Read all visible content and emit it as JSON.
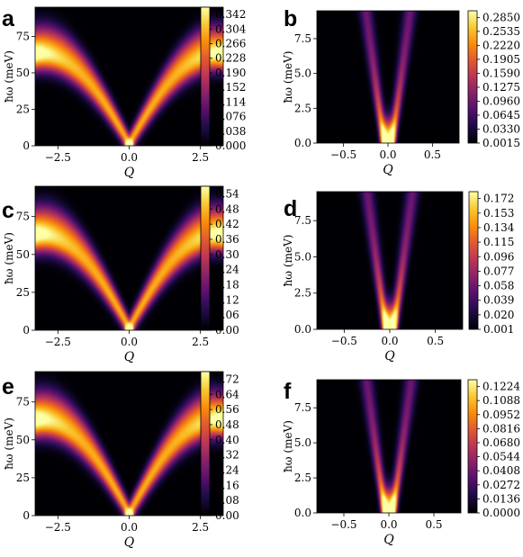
{
  "chart_data": [
    {
      "panel": "a",
      "type": "heatmap",
      "xlabel": "Q",
      "ylabel": "ħω (meV)",
      "xlim": [
        -3.3,
        3.3
      ],
      "ylim": [
        0,
        95
      ],
      "xticks": [
        -2.5,
        0.0,
        2.5
      ],
      "xticklabels": [
        "−2.5",
        "0.0",
        "2.5"
      ],
      "yticks": [
        0,
        25,
        50,
        75
      ],
      "yticklabels": [
        "0",
        "25",
        "50",
        "75"
      ],
      "colorbar": {
        "range": [
          0.0,
          0.361
        ],
        "ticks": [
          "0.342",
          "0.304",
          "0.266",
          "0.228",
          "0.190",
          "0.152",
          "0.114",
          "0.076",
          "0.038",
          "0.000"
        ],
        "values": [
          0.342,
          0.304,
          0.266,
          0.228,
          0.19,
          0.152,
          0.114,
          0.076,
          0.038,
          0.0
        ]
      },
      "model": "wide-dispersion"
    },
    {
      "panel": "b",
      "type": "heatmap",
      "xlabel": "Q",
      "ylabel": "ħω (meV)",
      "xlim": [
        -0.8,
        0.8
      ],
      "ylim": [
        0,
        9.5
      ],
      "xticks": [
        -0.5,
        0.0,
        0.5
      ],
      "xticklabels": [
        "−0.5",
        "0.0",
        "0.5"
      ],
      "yticks": [
        0,
        2.5,
        5.0,
        7.5
      ],
      "yticklabels": [
        "0.0",
        "2.5",
        "5.0",
        "7.5"
      ],
      "colorbar": {
        "range": [
          0.0015,
          0.3
        ],
        "ticks": [
          "0.2850",
          "0.2535",
          "0.2220",
          "0.1905",
          "0.1590",
          "0.1275",
          "0.0960",
          "0.0645",
          "0.0330",
          "0.0015"
        ],
        "values": [
          0.285,
          0.2535,
          0.222,
          0.1905,
          0.159,
          0.1275,
          0.096,
          0.0645,
          0.033,
          0.0015
        ]
      },
      "model": "zoom"
    },
    {
      "panel": "c",
      "type": "heatmap",
      "xlabel": "Q",
      "ylabel": "ħω (meV)",
      "xlim": [
        -3.3,
        3.3
      ],
      "ylim": [
        0,
        95
      ],
      "xticks": [
        -2.5,
        0.0,
        2.5
      ],
      "xticklabels": [
        "−2.5",
        "0.0",
        "2.5"
      ],
      "yticks": [
        0,
        25,
        50,
        75
      ],
      "yticklabels": [
        "0",
        "25",
        "50",
        "75"
      ],
      "colorbar": {
        "range": [
          0.0,
          0.57
        ],
        "ticks": [
          "0.54",
          "0.48",
          "0.42",
          "0.36",
          "0.30",
          "0.24",
          "0.18",
          "0.12",
          "0.06",
          "0.00"
        ],
        "values": [
          0.54,
          0.48,
          0.42,
          0.36,
          0.3,
          0.24,
          0.18,
          0.12,
          0.06,
          0.0
        ]
      },
      "model": "wide-dispersion"
    },
    {
      "panel": "d",
      "type": "heatmap",
      "xlabel": "Q",
      "ylabel": "ħω (meV)",
      "xlim": [
        -0.8,
        0.8
      ],
      "ylim": [
        0,
        9.5
      ],
      "xticks": [
        -0.5,
        0.0,
        0.5
      ],
      "xticklabels": [
        "−0.5",
        "0.0",
        "0.5"
      ],
      "yticks": [
        0,
        2.5,
        5.0,
        7.5
      ],
      "yticklabels": [
        "0.0",
        "2.5",
        "5.0",
        "7.5"
      ],
      "colorbar": {
        "range": [
          0.001,
          0.181
        ],
        "ticks": [
          "0.172",
          "0.153",
          "0.134",
          "0.115",
          "0.096",
          "0.077",
          "0.058",
          "0.039",
          "0.020",
          "0.001"
        ],
        "values": [
          0.172,
          0.153,
          0.134,
          0.115,
          0.096,
          0.077,
          0.058,
          0.039,
          0.02,
          0.001
        ]
      },
      "model": "zoom"
    },
    {
      "panel": "e",
      "type": "heatmap",
      "xlabel": "Q",
      "ylabel": "ħω (meV)",
      "xlim": [
        -3.3,
        3.3
      ],
      "ylim": [
        0,
        95
      ],
      "xticks": [
        -2.5,
        0.0,
        2.5
      ],
      "xticklabels": [
        "−2.5",
        "0.0",
        "2.5"
      ],
      "yticks": [
        0,
        25,
        50,
        75
      ],
      "yticklabels": [
        "0",
        "25",
        "50",
        "75"
      ],
      "colorbar": {
        "range": [
          0.0,
          0.76
        ],
        "ticks": [
          "0.72",
          "0.64",
          "0.56",
          "0.48",
          "0.40",
          "0.32",
          "0.24",
          "0.16",
          "0.08",
          "0.00"
        ],
        "values": [
          0.72,
          0.64,
          0.56,
          0.48,
          0.4,
          0.32,
          0.24,
          0.16,
          0.08,
          0.0
        ]
      },
      "model": "wide-dispersion"
    },
    {
      "panel": "f",
      "type": "heatmap",
      "xlabel": "Q",
      "ylabel": "ħω (meV)",
      "xlim": [
        -0.8,
        0.8
      ],
      "ylim": [
        0,
        9.5
      ],
      "xticks": [
        -0.5,
        0.0,
        0.5
      ],
      "xticklabels": [
        "−0.5",
        "0.0",
        "0.5"
      ],
      "yticks": [
        0,
        2.5,
        5.0,
        7.5
      ],
      "yticklabels": [
        "0.0",
        "2.5",
        "5.0",
        "7.5"
      ],
      "colorbar": {
        "range": [
          0.0,
          0.129
        ],
        "ticks": [
          "0.1224",
          "0.1088",
          "0.0952",
          "0.0816",
          "0.0680",
          "0.0544",
          "0.0408",
          "0.0272",
          "0.0136",
          "0.0000"
        ],
        "values": [
          0.1224,
          0.1088,
          0.0952,
          0.0816,
          0.068,
          0.0544,
          0.0408,
          0.0272,
          0.0136,
          0.0
        ]
      },
      "model": "zoom"
    }
  ]
}
